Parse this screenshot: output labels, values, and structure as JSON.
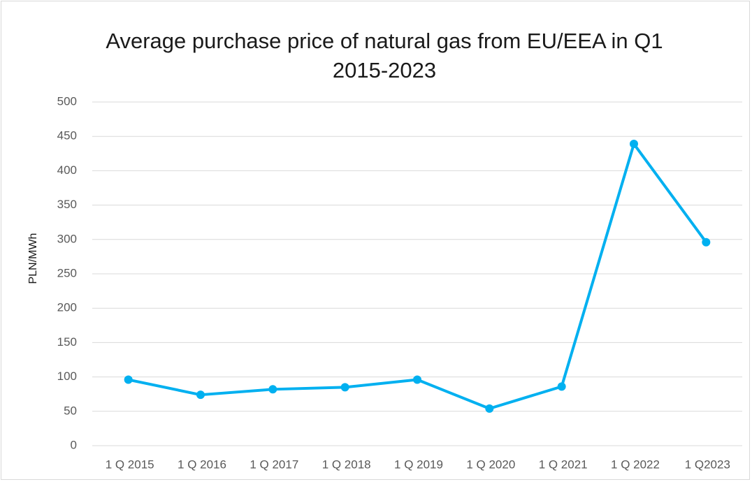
{
  "chart_data": {
    "type": "line",
    "title": "Average purchase price of natural gas from EU/EEA in Q1 2015-2023",
    "y_label": "PLN/MWh",
    "categories": [
      "1 Q 2015",
      "1 Q 2016",
      "1 Q 2017",
      "1 Q 2018",
      "1 Q 2019",
      "1 Q 2020",
      "1 Q 2021",
      "1 Q 2022",
      "1 Q2023"
    ],
    "series": [
      {
        "name": "Average purchase price",
        "color": "#00b0f0",
        "values": [
          96,
          74,
          82,
          85,
          96,
          54,
          86,
          439,
          296
        ]
      }
    ],
    "ylim": [
      0,
      500
    ],
    "yticks": [
      0,
      50,
      100,
      150,
      200,
      250,
      300,
      350,
      400,
      450,
      500
    ],
    "grid": true
  }
}
